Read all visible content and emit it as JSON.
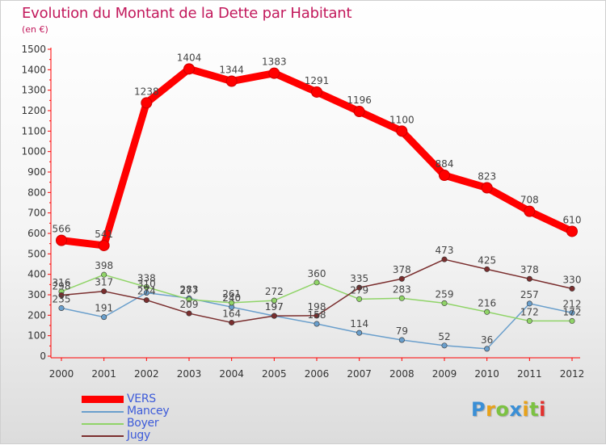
{
  "header": {
    "title": "Evolution du Montant de la Dette par Habitant",
    "subtitle": "(en €)"
  },
  "brand": {
    "logo_text": "Proxiti"
  },
  "chart_data": {
    "type": "line",
    "title": "Evolution du Montant de la Dette par Habitant",
    "ylabel": "(en €)",
    "x": [
      "2000",
      "2001",
      "2002",
      "2003",
      "2004",
      "2005",
      "2006",
      "2007",
      "2008",
      "2009",
      "2010",
      "2011",
      "2012"
    ],
    "ylim": [
      0,
      1500
    ],
    "yticks": [
      0,
      100,
      200,
      300,
      400,
      500,
      600,
      700,
      800,
      900,
      1000,
      1100,
      1200,
      1300,
      1400,
      1500
    ],
    "grid": false,
    "legend_position": "bottom-left",
    "series": [
      {
        "name": "VERS",
        "color": "#ff0000",
        "values": [
          566,
          541,
          1238,
          1404,
          1344,
          1383,
          1291,
          1196,
          1100,
          884,
          823,
          708,
          610
        ]
      },
      {
        "name": "Mancey",
        "color": "#6a9fcc",
        "values": [
          235,
          191,
          310,
          283,
          240,
          197,
          158,
          114,
          79,
          52,
          36,
          257,
          212
        ]
      },
      {
        "name": "Boyer",
        "color": "#90d468",
        "values": [
          316,
          398,
          338,
          277,
          261,
          272,
          360,
          279,
          283,
          259,
          216,
          172,
          172
        ]
      },
      {
        "name": "Jugy",
        "color": "#7a2e2e",
        "values": [
          298,
          317,
          274,
          209,
          164,
          197,
          198,
          335,
          378,
          473,
          425,
          378,
          330
        ]
      }
    ]
  }
}
